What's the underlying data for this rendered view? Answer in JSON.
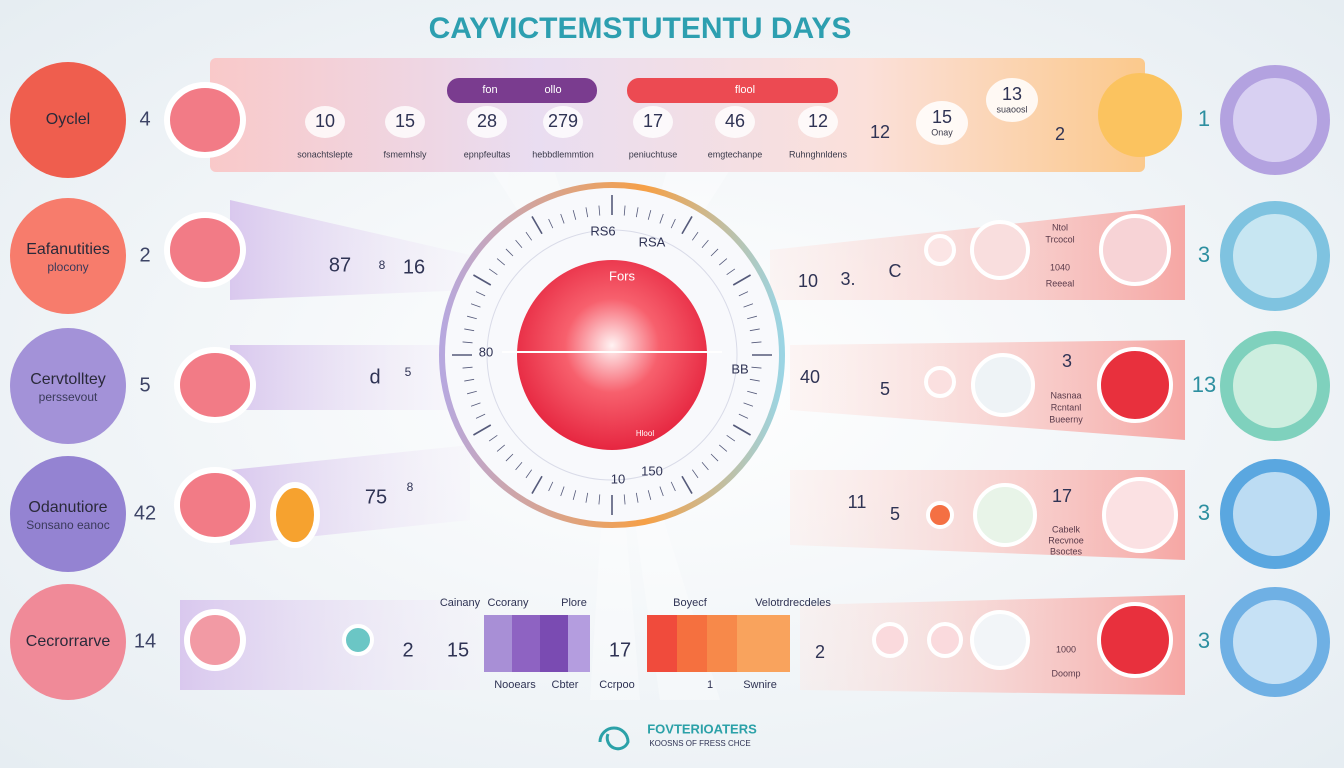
{
  "title": "CAYVICTEMSTUTENTU DAYS",
  "phases": [
    {
      "lines": [
        "Oyclel"
      ],
      "number": "4"
    },
    {
      "lines": [
        "Eafanutities",
        "plocony"
      ],
      "number": "2"
    },
    {
      "lines": [
        "Cervtolltey",
        "perssevout"
      ],
      "number": "5"
    },
    {
      "lines": [
        "Odanutiore",
        "Sonsano eanoc"
      ],
      "number": "42"
    },
    {
      "lines": [
        "Cecrorrarve"
      ],
      "number": "14"
    }
  ],
  "top_band": {
    "pills": [
      "fon",
      "ollo",
      "flool"
    ],
    "days": [
      {
        "number": "10",
        "caption": "sonachtslepte"
      },
      {
        "number": "15",
        "caption": "fsmemhsly"
      },
      {
        "number": "28",
        "caption": "epnpfeultas"
      },
      {
        "number": "279",
        "caption": "hebbdlemmtion"
      },
      {
        "number": "17",
        "caption": "peniuchtuse"
      },
      {
        "number": "46",
        "caption": "emgtechanpe"
      },
      {
        "number": "12",
        "caption": "Ruhnghnldens"
      }
    ],
    "extras": [
      {
        "number": "12"
      },
      {
        "number": "15",
        "caption": "Onay"
      },
      {
        "number": "13",
        "caption": "suaoosl"
      },
      {
        "number": "2"
      }
    ]
  },
  "rows": [
    {
      "left": [
        "87",
        "8",
        "16"
      ],
      "right": [
        "10",
        "3.",
        "C"
      ],
      "notes": [
        "Ntol",
        "Trcocol",
        "1040",
        "Reeeal"
      ]
    },
    {
      "left": [
        "d",
        "5"
      ],
      "right": [
        "40",
        "5",
        "3"
      ],
      "notes": [
        "Nasnaa",
        "Rcntanl",
        "Bueerny"
      ]
    },
    {
      "left": [
        "75",
        "8"
      ],
      "right": [
        "11",
        "5",
        "17"
      ],
      "notes": [
        "Cabelk",
        "Recvnoe",
        "Bsoctes"
      ]
    },
    {
      "left": [
        "2",
        "15",
        "17"
      ],
      "right": [
        "2"
      ],
      "notes": [
        "1000",
        "Doomp"
      ]
    }
  ],
  "end_numbers": [
    "1",
    "3",
    "13",
    "3",
    "3"
  ],
  "dial": {
    "labels": [
      "RS6",
      "RSA",
      "Fors",
      "80",
      "BB",
      "10",
      "150",
      "Hlool"
    ]
  },
  "legend": {
    "top": [
      "Cainany",
      "Ccorany",
      "Plore",
      "Boyecf",
      "Velotrdrecdeles"
    ],
    "bottom": [
      "Nooears",
      "Cbter",
      "Ccrpoo",
      "1",
      "Swnire"
    ]
  },
  "footer": {
    "brand": "FOVTERIOATERS",
    "tagline": "KOOSNS OF FRESS CHCE"
  }
}
